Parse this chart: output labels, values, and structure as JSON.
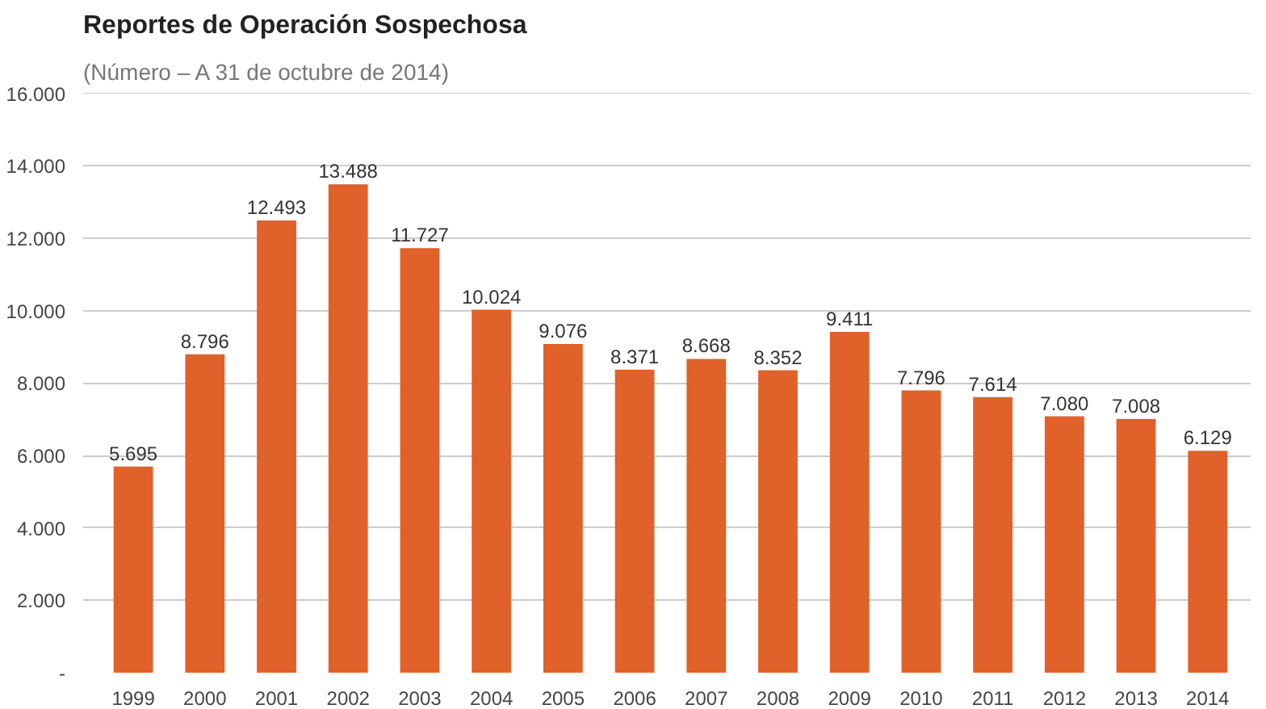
{
  "chart_data": {
    "type": "bar",
    "title": "Reportes de Operación Sospechosa",
    "subtitle": "(Número – A 31 de octubre de 2014)",
    "categories": [
      "1999",
      "2000",
      "2001",
      "2002",
      "2003",
      "2004",
      "2005",
      "2006",
      "2007",
      "2008",
      "2009",
      "2010",
      "2011",
      "2012",
      "2013",
      "2014"
    ],
    "values": [
      5695,
      8796,
      12493,
      13488,
      11727,
      10024,
      9076,
      8371,
      8668,
      8352,
      9411,
      7796,
      7614,
      7080,
      7008,
      6129
    ],
    "value_labels": [
      "5.695",
      "8.796",
      "12.493",
      "13.488",
      "11.727",
      "10.024",
      "9.076",
      "8.371",
      "8.668",
      "8.352",
      "9.411",
      "7.796",
      "7.614",
      "7.080",
      "7.008",
      "6.129"
    ],
    "color": "#e0612a",
    "ylim": [
      0,
      16000
    ],
    "yticks": [
      {
        "value": 0,
        "label": "-"
      },
      {
        "value": 2000,
        "label": "2.000"
      },
      {
        "value": 4000,
        "label": "4.000"
      },
      {
        "value": 6000,
        "label": "6.000"
      },
      {
        "value": 8000,
        "label": "8.000"
      },
      {
        "value": 10000,
        "label": "10.000"
      },
      {
        "value": 12000,
        "label": "12.000"
      },
      {
        "value": 14000,
        "label": "14.000"
      },
      {
        "value": 16000,
        "label": "16.000"
      }
    ],
    "grid": "y"
  }
}
